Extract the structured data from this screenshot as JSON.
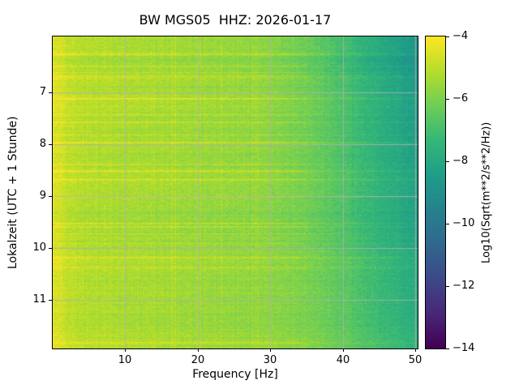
{
  "chart_data": {
    "type": "heatmap",
    "title": "BW MGS05  HHZ: 2026-01-17",
    "xlabel": "Frequency [Hz]",
    "ylabel": "Lokalzeit (UTC + 1 Stunde)",
    "colorbar_label": "Log10(Sqrt(m**2/s**2/Hz))",
    "xlim": [
      0,
      50.3
    ],
    "ylim": [
      5.93,
      11.93
    ],
    "x_ticks": [
      10,
      20,
      30,
      40,
      50
    ],
    "x_tick_labels": [
      "10",
      "20",
      "30",
      "40",
      "50"
    ],
    "y_ticks": [
      7,
      8,
      9,
      10,
      11
    ],
    "y_tick_labels": [
      "7",
      "8",
      "9",
      "10",
      "11"
    ],
    "grid": {
      "on": true,
      "color": "#b0b0b0"
    },
    "colorbar": {
      "colormap": "viridis",
      "vmin": -14,
      "vmax": -4,
      "ticks": [
        -4,
        -6,
        -8,
        -10,
        -12,
        -14
      ],
      "tick_labels": [
        "−4",
        "−6",
        "−8",
        "−10",
        "−12",
        "−14"
      ]
    },
    "spectrum_profile": {
      "frequencies_hz": [
        0,
        0.5,
        2,
        5,
        10,
        15,
        20,
        25,
        30,
        35,
        40,
        45,
        50.3
      ],
      "log10_amplitude": [
        -4.4,
        -4.6,
        -5.0,
        -5.2,
        -5.3,
        -5.4,
        -5.55,
        -5.65,
        -5.75,
        -5.95,
        -6.5,
        -7.1,
        -7.7
      ]
    },
    "texture": {
      "seed": 1234,
      "pixel_noise": 0.55,
      "row_streak_prob": 0.1,
      "row_streak_amp": 0.6,
      "block_noise": 0.3,
      "high_freq_top_darkening": 1.1
    }
  }
}
